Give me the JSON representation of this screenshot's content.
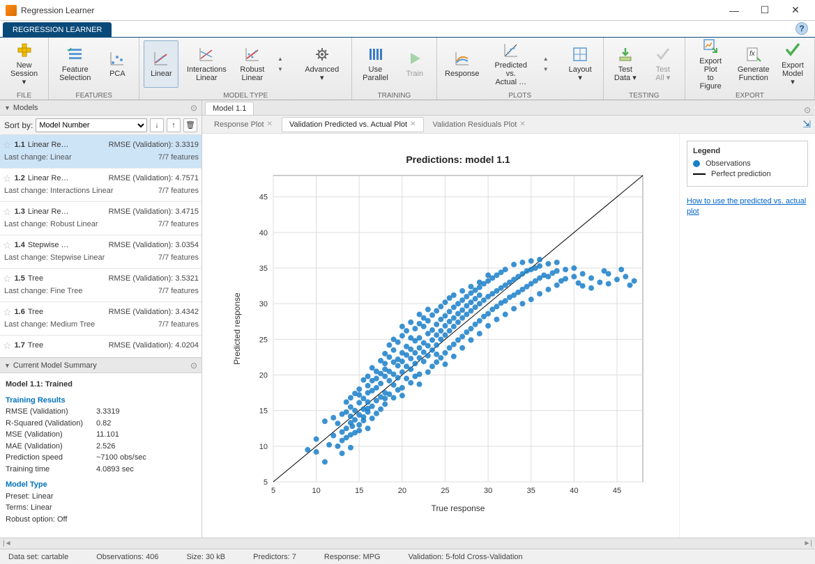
{
  "window": {
    "title": "Regression Learner",
    "tab": "REGRESSION LEARNER"
  },
  "ribbon": {
    "groups": [
      {
        "label": "FILE",
        "buttons": [
          {
            "id": "new-session",
            "text": "New\nSession ▾",
            "icon": "plus-yellow"
          }
        ]
      },
      {
        "label": "FEATURES",
        "buttons": [
          {
            "id": "feature-selection",
            "text": "Feature\nSelection",
            "icon": "checklist"
          },
          {
            "id": "pca",
            "text": "PCA",
            "icon": "scatter-small"
          }
        ]
      },
      {
        "label": "MODEL TYPE",
        "gallery": true,
        "buttons": [
          {
            "id": "linear",
            "text": "Linear",
            "icon": "line-up",
            "selected": true
          },
          {
            "id": "interactions-linear",
            "text": "Interactions\nLinear",
            "icon": "line-cross"
          },
          {
            "id": "robust-linear",
            "text": "Robust\nLinear",
            "icon": "line-dots"
          }
        ],
        "after": [
          {
            "id": "advanced",
            "text": "Advanced ▾",
            "icon": "gear"
          }
        ]
      },
      {
        "label": "TRAINING",
        "buttons": [
          {
            "id": "use-parallel",
            "text": "Use\nParallel",
            "icon": "bars-blue"
          },
          {
            "id": "train",
            "text": "Train",
            "icon": "play-green",
            "disabled": true
          }
        ]
      },
      {
        "label": "PLOTS",
        "gallery": true,
        "buttons": [
          {
            "id": "response",
            "text": "Response",
            "icon": "response-plot"
          },
          {
            "id": "pred-vs-actual",
            "text": "Predicted vs.\nActual …",
            "icon": "pva-plot"
          }
        ],
        "after": [
          {
            "id": "layout",
            "text": "Layout ▾",
            "icon": "layout"
          }
        ]
      },
      {
        "label": "TESTING",
        "buttons": [
          {
            "id": "test-data",
            "text": "Test\nData ▾",
            "icon": "import-green"
          },
          {
            "id": "test-all",
            "text": "Test\nAll ▾",
            "icon": "check-grey",
            "disabled": true
          }
        ]
      },
      {
        "label": "EXPORT",
        "buttons": [
          {
            "id": "export-plot",
            "text": "Export Plot\nto Figure",
            "icon": "export-plot"
          },
          {
            "id": "generate-function",
            "text": "Generate\nFunction",
            "icon": "gen-fn"
          },
          {
            "id": "export-model",
            "text": "Export\nModel ▾",
            "icon": "check-green"
          }
        ]
      }
    ]
  },
  "models_panel": {
    "title": "Models",
    "sort_label": "Sort by:",
    "sort_value": "Model Number",
    "items": [
      {
        "id": "1.1",
        "name": "Linear Re…",
        "rmse_label": "RMSE (Validation): 3.3319",
        "lc": "Last change: Linear",
        "feat": "7/7 features",
        "selected": true
      },
      {
        "id": "1.2",
        "name": "Linear Re…",
        "rmse_label": "RMSE (Validation): 4.7571",
        "lc": "Last change: Interactions Linear",
        "feat": "7/7 features"
      },
      {
        "id": "1.3",
        "name": "Linear Re…",
        "rmse_label": "RMSE (Validation): 3.4715",
        "lc": "Last change: Robust Linear",
        "feat": "7/7 features"
      },
      {
        "id": "1.4",
        "name": "Stepwise …",
        "rmse_label": "RMSE (Validation): 3.0354",
        "lc": "Last change: Stepwise Linear",
        "feat": "7/7 features"
      },
      {
        "id": "1.5",
        "name": "Tree",
        "rmse_label": "RMSE (Validation): 3.5321",
        "lc": "Last change: Fine Tree",
        "feat": "7/7 features"
      },
      {
        "id": "1.6",
        "name": "Tree",
        "rmse_label": "RMSE (Validation): 3.4342",
        "lc": "Last change: Medium Tree",
        "feat": "7/7 features"
      },
      {
        "id": "1.7",
        "name": "Tree",
        "rmse_label": "RMSE (Validation): 4.0204",
        "lc": "",
        "feat": ""
      }
    ]
  },
  "summary": {
    "title": "Current Model Summary",
    "model_line": "Model 1.1: Trained",
    "training_header": "Training Results",
    "results": [
      [
        "RMSE (Validation)",
        "3.3319"
      ],
      [
        "R-Squared (Validation)",
        "0.82"
      ],
      [
        "MSE (Validation)",
        "11.101"
      ],
      [
        "MAE (Validation)",
        "2.526"
      ],
      [
        "Prediction speed",
        "~7100 obs/sec"
      ],
      [
        "Training time",
        "4.0893 sec"
      ]
    ],
    "modeltype_header": "Model Type",
    "modeltype": [
      [
        "Preset:",
        "Linear"
      ],
      [
        "Terms:",
        "Linear"
      ],
      [
        "Robust option:",
        "Off"
      ]
    ]
  },
  "center": {
    "doctab": "Model 1.1",
    "plot_tabs": [
      "Response Plot",
      "Validation Predicted vs. Actual Plot",
      "Validation Residuals Plot"
    ],
    "active_tab": 1,
    "chart": {
      "type": "scatter",
      "title": "Predictions: model 1.1",
      "xlabel": "True response",
      "ylabel": "Predicted response",
      "xlim": [
        5,
        48
      ],
      "ylim": [
        5,
        48
      ],
      "ticks": [
        5,
        10,
        15,
        20,
        25,
        30,
        35,
        40,
        45
      ],
      "title_fontsize": 14,
      "label_fontsize": 12,
      "tick_fontsize": 11,
      "marker_color": "#1a7fc9",
      "marker_radius": 4,
      "line_color": "#000000",
      "line_width": 1,
      "grid_color": "#dddddd",
      "background_color": "#ffffff",
      "border_color": "#999999",
      "points": [
        [
          9,
          9.5
        ],
        [
          10,
          9.2
        ],
        [
          10,
          11
        ],
        [
          11,
          7.8
        ],
        [
          11,
          13.5
        ],
        [
          11.5,
          10.2
        ],
        [
          12,
          11.5
        ],
        [
          12,
          14
        ],
        [
          12.5,
          10
        ],
        [
          12.5,
          13.2
        ],
        [
          13,
          9
        ],
        [
          13,
          12
        ],
        [
          13,
          14.5
        ],
        [
          13,
          10.8
        ],
        [
          13.5,
          16.2
        ],
        [
          13.5,
          12.5
        ],
        [
          13.5,
          14.8
        ],
        [
          13.5,
          11.2
        ],
        [
          14,
          14.2
        ],
        [
          14,
          16.8
        ],
        [
          14,
          11.6
        ],
        [
          14,
          13.3
        ],
        [
          14,
          15.5
        ],
        [
          14,
          9.8
        ],
        [
          14.2,
          12.8
        ],
        [
          14.5,
          17.4
        ],
        [
          14.5,
          15
        ],
        [
          14.5,
          13.7
        ],
        [
          14.5,
          11.9
        ],
        [
          15,
          12.2
        ],
        [
          15,
          14.4
        ],
        [
          15,
          16.1
        ],
        [
          15,
          18
        ],
        [
          15,
          13
        ],
        [
          15,
          17.2
        ],
        [
          15.5,
          19.3
        ],
        [
          15.5,
          15.2
        ],
        [
          15.5,
          13.6
        ],
        [
          15.5,
          16.7
        ],
        [
          15.5,
          14.1
        ],
        [
          16,
          18.5
        ],
        [
          16,
          16.2
        ],
        [
          16,
          14.8
        ],
        [
          16,
          12.5
        ],
        [
          16,
          17.5
        ],
        [
          16,
          19.8
        ],
        [
          16,
          15.3
        ],
        [
          16.5,
          21
        ],
        [
          16.5,
          17.8
        ],
        [
          16.5,
          15.6
        ],
        [
          16.5,
          19.2
        ],
        [
          16.5,
          13.9
        ],
        [
          17,
          18.2
        ],
        [
          17,
          16.4
        ],
        [
          17,
          20.5
        ],
        [
          17,
          14.6
        ],
        [
          17,
          19.5
        ],
        [
          17.5,
          22
        ],
        [
          17.5,
          18.8
        ],
        [
          17.5,
          16.9
        ],
        [
          17.5,
          15.2
        ],
        [
          17.5,
          20.2
        ],
        [
          18,
          19.8
        ],
        [
          18,
          17.5
        ],
        [
          18,
          21.6
        ],
        [
          18,
          15.9
        ],
        [
          18,
          23
        ],
        [
          18,
          16.7
        ],
        [
          18,
          20.8
        ],
        [
          18.5,
          22.5
        ],
        [
          18.5,
          19.2
        ],
        [
          18.5,
          17.3
        ],
        [
          18.5,
          24.2
        ],
        [
          18.5,
          20.5
        ],
        [
          19,
          21.8
        ],
        [
          19,
          18.6
        ],
        [
          19,
          16.8
        ],
        [
          19,
          23.5
        ],
        [
          19,
          20.1
        ],
        [
          19,
          25
        ],
        [
          19.5,
          22.2
        ],
        [
          19.5,
          19.6
        ],
        [
          19.5,
          17.9
        ],
        [
          19.5,
          24.6
        ],
        [
          19.5,
          21.3
        ],
        [
          20,
          23.1
        ],
        [
          20,
          20.4
        ],
        [
          20,
          18.2
        ],
        [
          20,
          25.5
        ],
        [
          20,
          21.9
        ],
        [
          20,
          17.1
        ],
        [
          20,
          26.8
        ],
        [
          20.5,
          24
        ],
        [
          20.5,
          21.2
        ],
        [
          20.5,
          19.5
        ],
        [
          20.5,
          22.8
        ],
        [
          20.5,
          26.2
        ],
        [
          21,
          23.6
        ],
        [
          21,
          20.8
        ],
        [
          21,
          18.9
        ],
        [
          21,
          25.2
        ],
        [
          21,
          27.4
        ],
        [
          21,
          22.3
        ],
        [
          21.5,
          24.8
        ],
        [
          21.5,
          21.6
        ],
        [
          21.5,
          19.8
        ],
        [
          21.5,
          26.5
        ],
        [
          21.5,
          23.1
        ],
        [
          22,
          25.2
        ],
        [
          22,
          22.4
        ],
        [
          22,
          20.1
        ],
        [
          22,
          27.2
        ],
        [
          22,
          23.8
        ],
        [
          22,
          18.7
        ],
        [
          22,
          28.5
        ],
        [
          22.5,
          24.5
        ],
        [
          22.5,
          21.9
        ],
        [
          22.5,
          26.8
        ],
        [
          22.5,
          23.2
        ],
        [
          22.5,
          28
        ],
        [
          23,
          25.8
        ],
        [
          23,
          22.7
        ],
        [
          23,
          20.4
        ],
        [
          23,
          27.6
        ],
        [
          23,
          24.1
        ],
        [
          23,
          29.2
        ],
        [
          23.5,
          26.3
        ],
        [
          23.5,
          23.5
        ],
        [
          23.5,
          21.2
        ],
        [
          23.5,
          28.4
        ],
        [
          23.5,
          24.9
        ],
        [
          24,
          27.1
        ],
        [
          24,
          24.2
        ],
        [
          24,
          21.8
        ],
        [
          24,
          29
        ],
        [
          24,
          25.6
        ],
        [
          24,
          22.9
        ],
        [
          24.5,
          27.8
        ],
        [
          24.5,
          25
        ],
        [
          24.5,
          22.4
        ],
        [
          24.5,
          29.6
        ],
        [
          24.5,
          26.2
        ],
        [
          25,
          28.3
        ],
        [
          25,
          25.6
        ],
        [
          25,
          23.1
        ],
        [
          25,
          30.2
        ],
        [
          25,
          26.9
        ],
        [
          25,
          21.5
        ],
        [
          25.5,
          28.9
        ],
        [
          25.5,
          26.2
        ],
        [
          25.5,
          23.8
        ],
        [
          25.5,
          30.8
        ],
        [
          25.5,
          27.5
        ],
        [
          26,
          29.5
        ],
        [
          26,
          26.8
        ],
        [
          26,
          24.3
        ],
        [
          26,
          31.2
        ],
        [
          26,
          28
        ],
        [
          26,
          22.6
        ],
        [
          26.5,
          30
        ],
        [
          26.5,
          27.4
        ],
        [
          26.5,
          24.9
        ],
        [
          26.5,
          28.6
        ],
        [
          27,
          30.5
        ],
        [
          27,
          28
        ],
        [
          27,
          25.4
        ],
        [
          27,
          31.8
        ],
        [
          27,
          29.1
        ],
        [
          27,
          23.8
        ],
        [
          27.5,
          31
        ],
        [
          27.5,
          28.5
        ],
        [
          27.5,
          26
        ],
        [
          27.5,
          29.7
        ],
        [
          28,
          31.5
        ],
        [
          28,
          29
        ],
        [
          28,
          26.5
        ],
        [
          28,
          32.4
        ],
        [
          28,
          30.2
        ],
        [
          28,
          24.9
        ],
        [
          28.5,
          31.9
        ],
        [
          28.5,
          29.5
        ],
        [
          28.5,
          27.1
        ],
        [
          28.5,
          30.7
        ],
        [
          29,
          32.3
        ],
        [
          29,
          30
        ],
        [
          29,
          27.6
        ],
        [
          29,
          33
        ],
        [
          29,
          31.2
        ],
        [
          29,
          25.8
        ],
        [
          29.5,
          32.8
        ],
        [
          29.5,
          30.5
        ],
        [
          29.5,
          28.2
        ],
        [
          30,
          33.2
        ],
        [
          30,
          31
        ],
        [
          30,
          28.6
        ],
        [
          30,
          34
        ],
        [
          30,
          26.9
        ],
        [
          30.5,
          33.6
        ],
        [
          30.5,
          31.4
        ],
        [
          30.5,
          29.2
        ],
        [
          31,
          34
        ],
        [
          31,
          31.8
        ],
        [
          31,
          29.6
        ],
        [
          31,
          27.8
        ],
        [
          31.5,
          34.4
        ],
        [
          31.5,
          32.2
        ],
        [
          31.5,
          30.1
        ],
        [
          32,
          34.8
        ],
        [
          32,
          32.6
        ],
        [
          32,
          30.4
        ],
        [
          32,
          28.5
        ],
        [
          32.5,
          33
        ],
        [
          32.5,
          30.9
        ],
        [
          33,
          35.5
        ],
        [
          33,
          33.4
        ],
        [
          33,
          31.2
        ],
        [
          33,
          29.3
        ],
        [
          33.5,
          33.8
        ],
        [
          33.5,
          31.6
        ],
        [
          34,
          35.8
        ],
        [
          34,
          34.2
        ],
        [
          34,
          32
        ],
        [
          34,
          30
        ],
        [
          34.5,
          34.6
        ],
        [
          34.5,
          32.4
        ],
        [
          35,
          36
        ],
        [
          35,
          34.8
        ],
        [
          35,
          32.8
        ],
        [
          35,
          30.6
        ],
        [
          35.5,
          35
        ],
        [
          35.5,
          33.2
        ],
        [
          36,
          36.2
        ],
        [
          36,
          35.3
        ],
        [
          36,
          33.6
        ],
        [
          36,
          31.4
        ],
        [
          36.5,
          34
        ],
        [
          37,
          35.6
        ],
        [
          37,
          33.8
        ],
        [
          37,
          32
        ],
        [
          37.5,
          34.3
        ],
        [
          38,
          35.8
        ],
        [
          38,
          34.6
        ],
        [
          38,
          32.6
        ],
        [
          38.5,
          33.2
        ],
        [
          39,
          34.8
        ],
        [
          39,
          33.5
        ],
        [
          40,
          35
        ],
        [
          40,
          33.8
        ],
        [
          40.5,
          32.9
        ],
        [
          41,
          34.2
        ],
        [
          41,
          32.5
        ],
        [
          42,
          33.6
        ],
        [
          42,
          32.2
        ],
        [
          43,
          33
        ],
        [
          43.5,
          34.6
        ],
        [
          44,
          32.8
        ],
        [
          44,
          34.2
        ],
        [
          45,
          33.4
        ],
        [
          45.5,
          34.8
        ],
        [
          46,
          33.8
        ],
        [
          46.5,
          32.6
        ],
        [
          47,
          33.2
        ]
      ]
    },
    "legend": {
      "title": "Legend",
      "obs": "Observations",
      "perfect": "Perfect prediction",
      "helplink": "How to use the predicted vs. actual plot"
    }
  },
  "statusbar": {
    "dataset": "Data set: cartable",
    "obs": "Observations: 406",
    "size": "Size: 30 kB",
    "predictors": "Predictors: 7",
    "response": "Response: MPG",
    "validation": "Validation: 5-fold Cross-Validation"
  }
}
